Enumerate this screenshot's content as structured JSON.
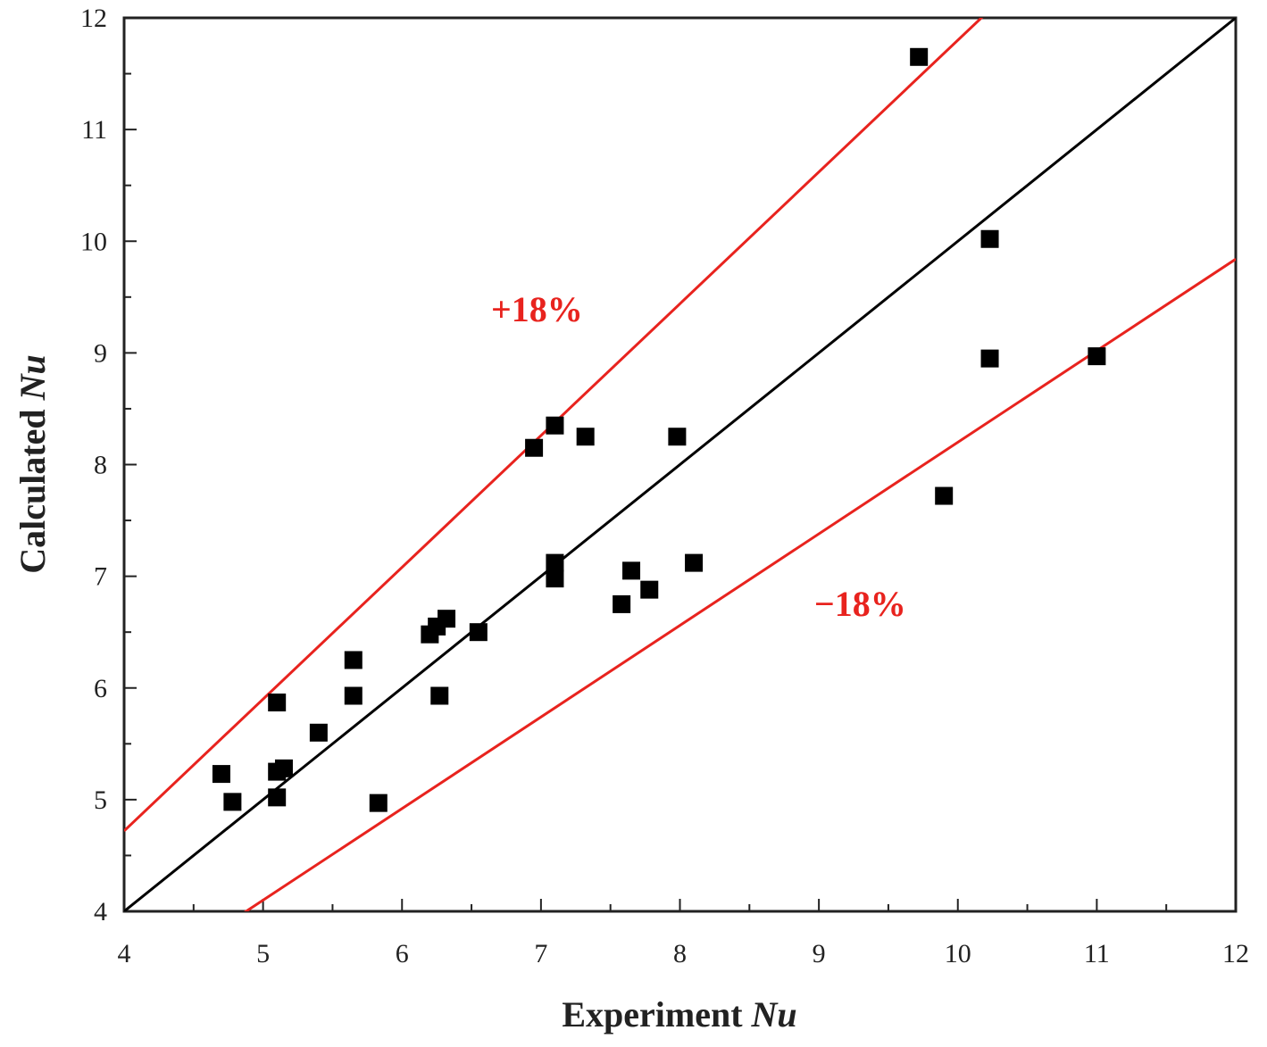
{
  "chart_data": {
    "type": "scatter",
    "xlabel": {
      "prefix": "Experiment ",
      "italic": "Nu"
    },
    "ylabel": {
      "prefix": "Calculated ",
      "italic": "Nu"
    },
    "xlim": [
      4,
      12
    ],
    "ylim": [
      4,
      12
    ],
    "xticks": [
      "4",
      "5",
      "6",
      "7",
      "8",
      "9",
      "10",
      "11",
      "12"
    ],
    "yticks": [
      "4",
      "5",
      "6",
      "7",
      "8",
      "9",
      "10",
      "11",
      "12"
    ],
    "reference_lines": [
      {
        "name": "y = x",
        "factor": 1.0,
        "color": "#000000"
      },
      {
        "name": "+18%",
        "factor": 1.18,
        "color": "#e8231e",
        "label": "+18%"
      },
      {
        "name": "-18%",
        "factor": 0.82,
        "color": "#e8231e",
        "label": "−18%"
      }
    ],
    "series": [
      {
        "name": "data",
        "color": "#000000",
        "points": [
          [
            4.7,
            5.23
          ],
          [
            4.78,
            4.98
          ],
          [
            5.1,
            5.87
          ],
          [
            5.1,
            5.25
          ],
          [
            5.1,
            5.02
          ],
          [
            5.15,
            5.28
          ],
          [
            5.4,
            5.6
          ],
          [
            5.65,
            6.25
          ],
          [
            5.65,
            5.93
          ],
          [
            5.83,
            4.97
          ],
          [
            6.2,
            6.48
          ],
          [
            6.25,
            6.55
          ],
          [
            6.27,
            5.93
          ],
          [
            6.32,
            6.62
          ],
          [
            6.55,
            6.5
          ],
          [
            6.95,
            8.15
          ],
          [
            7.1,
            8.35
          ],
          [
            7.1,
            7.12
          ],
          [
            7.1,
            6.98
          ],
          [
            7.32,
            8.25
          ],
          [
            7.58,
            6.75
          ],
          [
            7.65,
            7.05
          ],
          [
            7.78,
            6.88
          ],
          [
            7.98,
            8.25
          ],
          [
            8.1,
            7.12
          ],
          [
            9.72,
            11.65
          ],
          [
            9.9,
            7.72
          ],
          [
            10.23,
            10.02
          ],
          [
            10.23,
            8.95
          ],
          [
            11.0,
            8.97
          ]
        ]
      }
    ]
  }
}
